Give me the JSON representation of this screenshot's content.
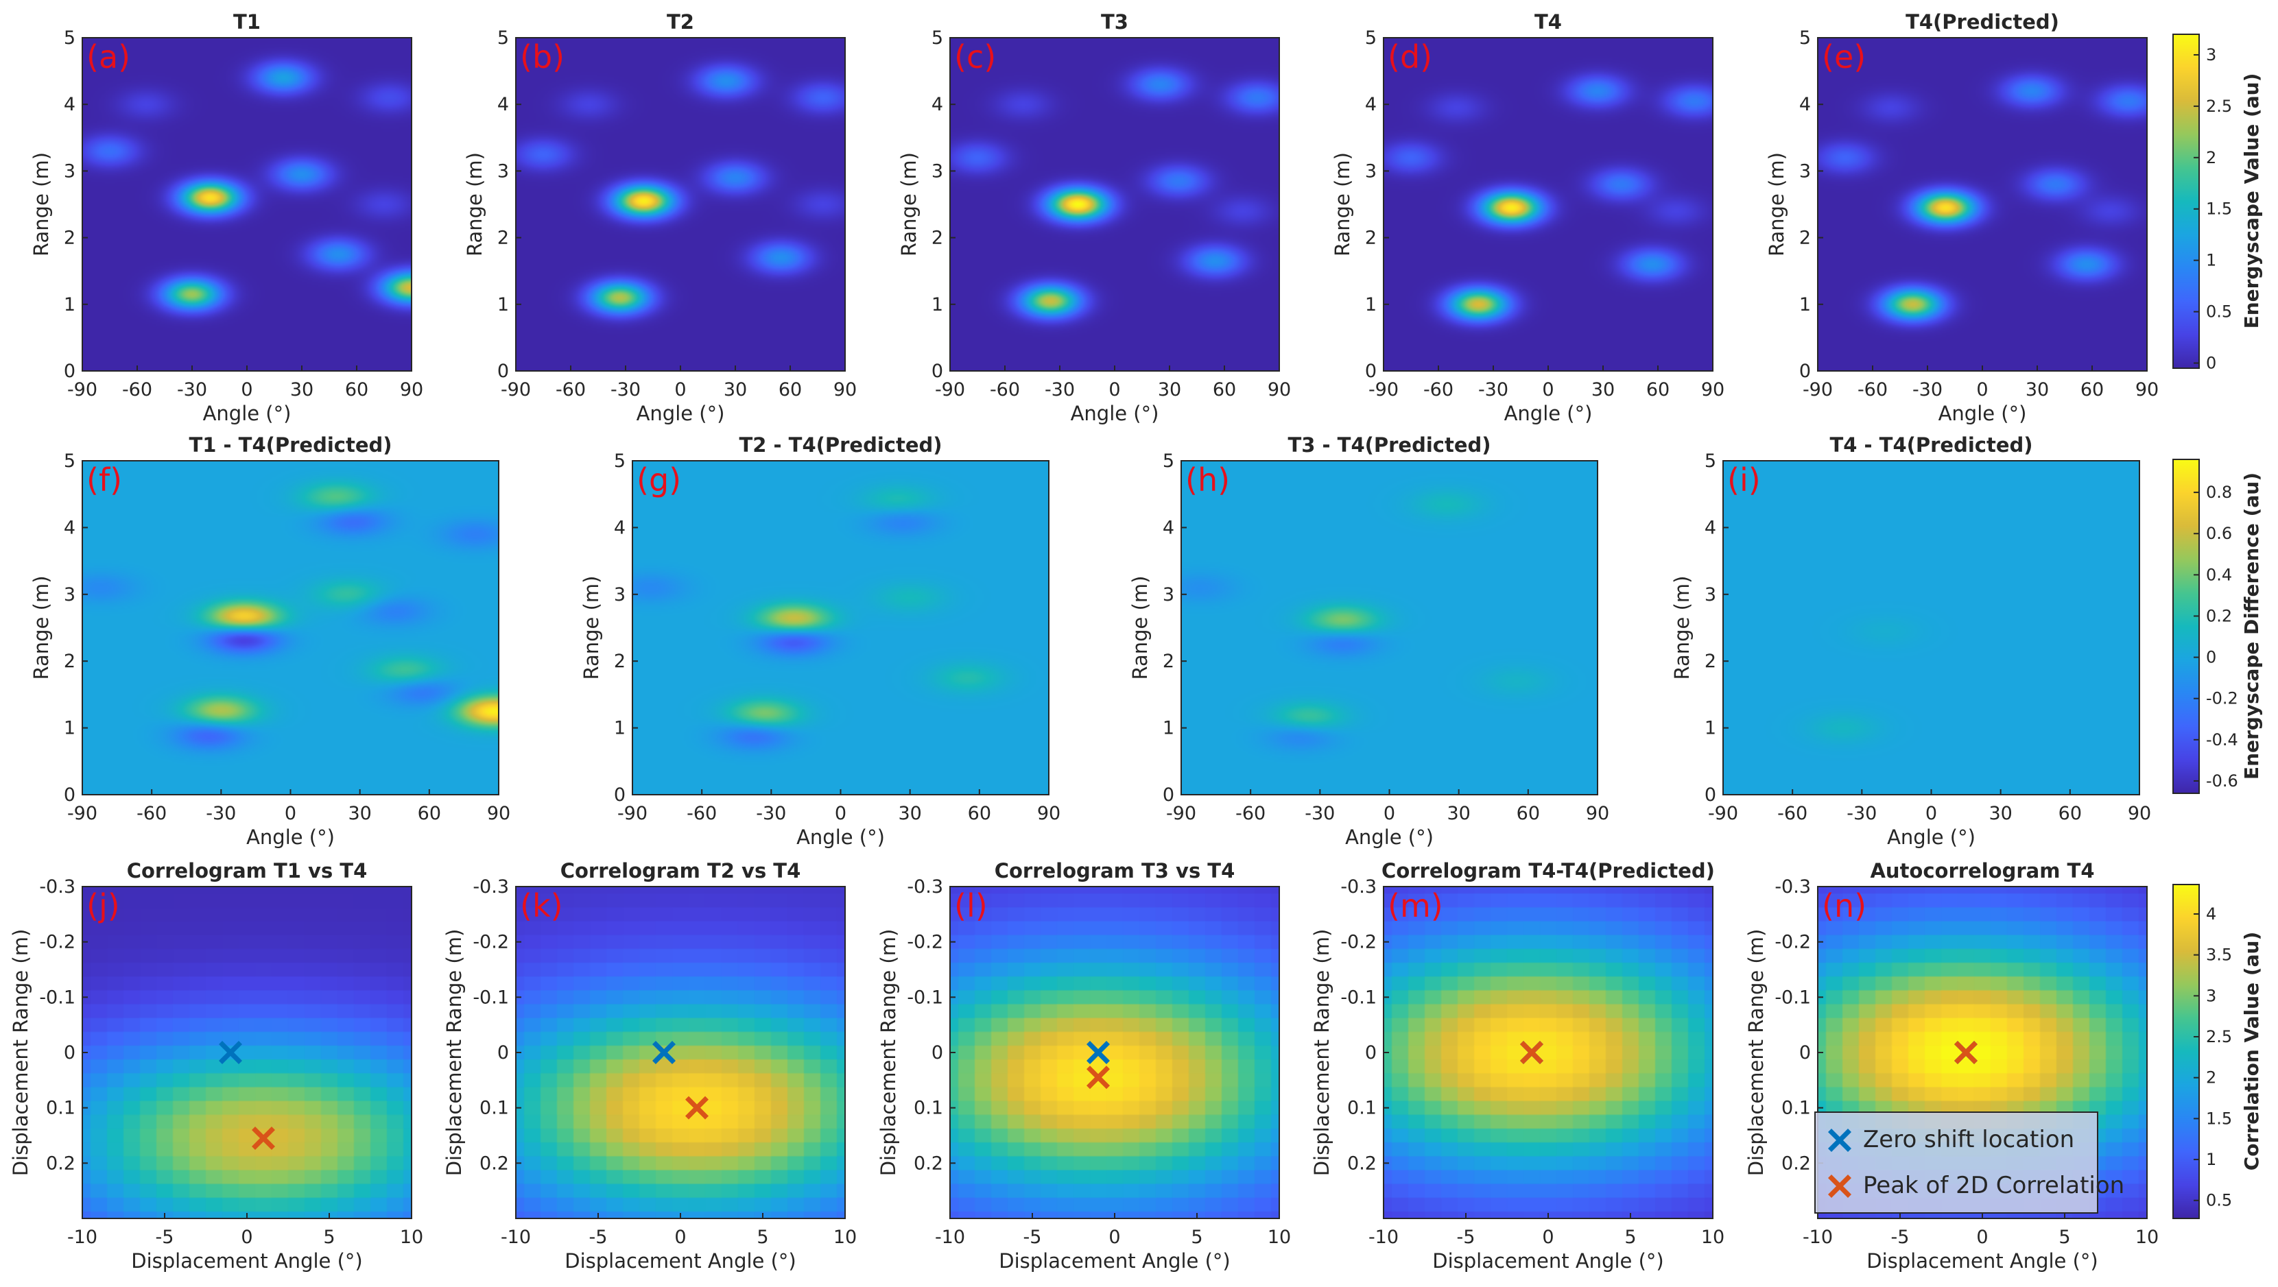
{
  "colors": {
    "panel_letter": "#e8101a",
    "zero_shift_marker": "#0072bd",
    "peak_marker": "#d95319",
    "axis": "#262626",
    "legend_bg": "#c8cde6"
  },
  "rows": {
    "row1": {
      "colorbar": {
        "label": "Energyscape Value (au)",
        "ticks": [
          "0",
          "0.5",
          "1",
          "1.5",
          "2",
          "2.5",
          "3"
        ]
      },
      "xlabel": "Angle (°)",
      "ylabel": "Range (m)",
      "xticks": [
        "-90",
        "-60",
        "-30",
        "0",
        "30",
        "60",
        "90"
      ],
      "yticks": [
        "0",
        "1",
        "2",
        "3",
        "4",
        "5"
      ]
    },
    "row2": {
      "colorbar": {
        "label": "Energyscape Difference (au)",
        "ticks": [
          "-0.6",
          "-0.4",
          "-0.2",
          "0",
          "0.2",
          "0.4",
          "0.6",
          "0.8"
        ]
      },
      "xlabel": "Angle (°)",
      "ylabel": "Range (m)",
      "xticks": [
        "-90",
        "-60",
        "-30",
        "0",
        "30",
        "60",
        "90"
      ],
      "yticks": [
        "0",
        "1",
        "2",
        "3",
        "4",
        "5"
      ]
    },
    "row3": {
      "colorbar": {
        "label": "Correlation Value (au)",
        "ticks": [
          "0.5",
          "1",
          "1.5",
          "2",
          "2.5",
          "3",
          "3.5",
          "4"
        ]
      },
      "xlabel": "Displacement Angle (°)",
      "ylabel": "Displacement Range (m)",
      "xticks": [
        "-10",
        "-5",
        "0",
        "5",
        "10"
      ],
      "yticks": [
        "-0.3",
        "-0.2",
        "-0.1",
        "0",
        "0.1",
        "0.2"
      ]
    }
  },
  "legend": {
    "zero_shift": "Zero shift location",
    "peak": "Peak of 2D Correlation"
  },
  "chart_data": [
    {
      "type": "heatmap",
      "panel": "(a)",
      "title": "T1",
      "xlabel": "Angle (°)",
      "ylabel": "Range (m)",
      "xlim": [
        -90,
        90
      ],
      "ylim": [
        0,
        5
      ],
      "clim": [
        0,
        3.1
      ],
      "peaks": [
        {
          "angle": -20,
          "range": 2.6,
          "value": 2.9
        },
        {
          "angle": -30,
          "range": 1.15,
          "value": 2.2
        },
        {
          "angle": 90,
          "range": 1.25,
          "value": 2.5
        },
        {
          "angle": 20,
          "range": 4.4,
          "value": 1.2
        },
        {
          "angle": 30,
          "range": 2.95,
          "value": 1.0
        },
        {
          "angle": 50,
          "range": 1.75,
          "value": 1.0
        },
        {
          "angle": -75,
          "range": 3.3,
          "value": 0.7
        },
        {
          "angle": 78,
          "range": 4.1,
          "value": 0.4
        },
        {
          "angle": 75,
          "range": 2.5,
          "value": 0.3
        },
        {
          "angle": -55,
          "range": 4.0,
          "value": 0.3
        }
      ]
    },
    {
      "type": "heatmap",
      "panel": "(b)",
      "title": "T2",
      "xlabel": "Angle (°)",
      "ylabel": "Range (m)",
      "xlim": [
        -90,
        90
      ],
      "ylim": [
        0,
        5
      ],
      "clim": [
        0,
        3.1
      ],
      "peaks": [
        {
          "angle": -20,
          "range": 2.55,
          "value": 3.0
        },
        {
          "angle": -33,
          "range": 1.1,
          "value": 2.3
        },
        {
          "angle": 25,
          "range": 4.35,
          "value": 1.0
        },
        {
          "angle": 30,
          "range": 2.9,
          "value": 0.9
        },
        {
          "angle": 55,
          "range": 1.7,
          "value": 1.0
        },
        {
          "angle": -75,
          "range": 3.25,
          "value": 0.6
        },
        {
          "angle": 78,
          "range": 4.1,
          "value": 0.6
        },
        {
          "angle": 78,
          "range": 2.5,
          "value": 0.3
        },
        {
          "angle": -50,
          "range": 4.0,
          "value": 0.3
        }
      ]
    },
    {
      "type": "heatmap",
      "panel": "(c)",
      "title": "T3",
      "xlabel": "Angle (°)",
      "ylabel": "Range (m)",
      "xlim": [
        -90,
        90
      ],
      "ylim": [
        0,
        5
      ],
      "clim": [
        0,
        3.1
      ],
      "peaks": [
        {
          "angle": -20,
          "range": 2.5,
          "value": 3.1
        },
        {
          "angle": -35,
          "range": 1.05,
          "value": 2.4
        },
        {
          "angle": 25,
          "range": 4.3,
          "value": 0.9
        },
        {
          "angle": 35,
          "range": 2.85,
          "value": 0.8
        },
        {
          "angle": 55,
          "range": 1.65,
          "value": 1.0
        },
        {
          "angle": -75,
          "range": 3.2,
          "value": 0.6
        },
        {
          "angle": 78,
          "range": 4.1,
          "value": 0.8
        },
        {
          "angle": 70,
          "range": 2.4,
          "value": 0.3
        },
        {
          "angle": -50,
          "range": 4.0,
          "value": 0.3
        }
      ]
    },
    {
      "type": "heatmap",
      "panel": "(d)",
      "title": "T4",
      "xlabel": "Angle (°)",
      "ylabel": "Range (m)",
      "xlim": [
        -90,
        90
      ],
      "ylim": [
        0,
        5
      ],
      "clim": [
        0,
        3.1
      ],
      "peaks": [
        {
          "angle": -20,
          "range": 2.45,
          "value": 3.0
        },
        {
          "angle": -38,
          "range": 1.0,
          "value": 2.5
        },
        {
          "angle": 27,
          "range": 4.2,
          "value": 0.9
        },
        {
          "angle": 40,
          "range": 2.8,
          "value": 0.8
        },
        {
          "angle": 57,
          "range": 1.6,
          "value": 1.0
        },
        {
          "angle": -75,
          "range": 3.2,
          "value": 0.6
        },
        {
          "angle": 80,
          "range": 4.05,
          "value": 0.8
        },
        {
          "angle": 70,
          "range": 2.4,
          "value": 0.3
        },
        {
          "angle": -50,
          "range": 3.95,
          "value": 0.3
        }
      ]
    },
    {
      "type": "heatmap",
      "panel": "(e)",
      "title": "T4(Predicted)",
      "xlabel": "Angle (°)",
      "ylabel": "Range (m)",
      "xlim": [
        -90,
        90
      ],
      "ylim": [
        0,
        5
      ],
      "clim": [
        0,
        3.1
      ],
      "peaks": [
        {
          "angle": -20,
          "range": 2.45,
          "value": 2.9
        },
        {
          "angle": -38,
          "range": 1.0,
          "value": 2.4
        },
        {
          "angle": 27,
          "range": 4.2,
          "value": 0.9
        },
        {
          "angle": 40,
          "range": 2.8,
          "value": 0.8
        },
        {
          "angle": 57,
          "range": 1.6,
          "value": 1.0
        },
        {
          "angle": -75,
          "range": 3.2,
          "value": 0.6
        },
        {
          "angle": 80,
          "range": 4.05,
          "value": 0.8
        },
        {
          "angle": 70,
          "range": 2.4,
          "value": 0.3
        },
        {
          "angle": -50,
          "range": 3.95,
          "value": 0.3
        }
      ]
    },
    {
      "type": "heatmap",
      "panel": "(f)",
      "title": "T1 - T4(Predicted)",
      "xlabel": "Angle (°)",
      "ylabel": "Range (m)",
      "xlim": [
        -90,
        90
      ],
      "ylim": [
        0,
        5
      ],
      "clim": [
        -0.65,
        0.95
      ],
      "peaks": [
        {
          "angle": -20,
          "range": 2.65,
          "value": 0.85
        },
        {
          "angle": -20,
          "range": 2.35,
          "value": -0.6
        },
        {
          "angle": -30,
          "range": 1.25,
          "value": 0.55
        },
        {
          "angle": -35,
          "range": 0.9,
          "value": -0.35
        },
        {
          "angle": 88,
          "range": 1.25,
          "value": 0.9
        },
        {
          "angle": 20,
          "range": 4.45,
          "value": 0.35
        },
        {
          "angle": 27,
          "range": 4.1,
          "value": -0.3
        },
        {
          "angle": 25,
          "range": 3.0,
          "value": 0.25
        },
        {
          "angle": 45,
          "range": 2.75,
          "value": -0.2
        },
        {
          "angle": 50,
          "range": 1.85,
          "value": 0.3
        },
        {
          "angle": 57,
          "range": 1.55,
          "value": -0.25
        },
        {
          "angle": 80,
          "range": 3.9,
          "value": -0.2
        },
        {
          "angle": -82,
          "range": 3.1,
          "value": -0.15
        }
      ]
    },
    {
      "type": "heatmap",
      "panel": "(g)",
      "title": "T2 - T4(Predicted)",
      "xlabel": "Angle (°)",
      "ylabel": "Range (m)",
      "xlim": [
        -90,
        90
      ],
      "ylim": [
        0,
        5
      ],
      "clim": [
        -0.65,
        0.95
      ],
      "peaks": [
        {
          "angle": -20,
          "range": 2.62,
          "value": 0.65
        },
        {
          "angle": -20,
          "range": 2.32,
          "value": -0.45
        },
        {
          "angle": -33,
          "range": 1.2,
          "value": 0.45
        },
        {
          "angle": -37,
          "range": 0.9,
          "value": -0.3
        },
        {
          "angle": 25,
          "range": 4.4,
          "value": 0.2
        },
        {
          "angle": 27,
          "range": 4.1,
          "value": -0.2
        },
        {
          "angle": 30,
          "range": 2.95,
          "value": 0.15
        },
        {
          "angle": 55,
          "range": 1.75,
          "value": 0.2
        },
        {
          "angle": -82,
          "range": 3.1,
          "value": -0.15
        }
      ]
    },
    {
      "type": "heatmap",
      "panel": "(h)",
      "title": "T3 - T4(Predicted)",
      "xlabel": "Angle (°)",
      "ylabel": "Range (m)",
      "xlim": [
        -90,
        90
      ],
      "ylim": [
        0,
        5
      ],
      "clim": [
        -0.65,
        0.95
      ],
      "peaks": [
        {
          "angle": -20,
          "range": 2.6,
          "value": 0.45
        },
        {
          "angle": -20,
          "range": 2.3,
          "value": -0.25
        },
        {
          "angle": -35,
          "range": 1.15,
          "value": 0.3
        },
        {
          "angle": -38,
          "range": 0.9,
          "value": -0.2
        },
        {
          "angle": 25,
          "range": 4.35,
          "value": 0.15
        },
        {
          "angle": 55,
          "range": 1.7,
          "value": 0.1
        },
        {
          "angle": -82,
          "range": 3.1,
          "value": -0.12
        }
      ]
    },
    {
      "type": "heatmap",
      "panel": "(i)",
      "title": "T4 - T4(Predicted)",
      "xlabel": "Angle (°)",
      "ylabel": "Range (m)",
      "xlim": [
        -90,
        90
      ],
      "ylim": [
        0,
        5
      ],
      "clim": [
        -0.65,
        0.95
      ],
      "peaks": [
        {
          "angle": -38,
          "range": 1.0,
          "value": 0.12
        },
        {
          "angle": -20,
          "range": 2.45,
          "value": 0.06
        }
      ]
    },
    {
      "type": "heatmap",
      "panel": "(j)",
      "title": "Correlogram T1 vs T4",
      "xlabel": "Displacement Angle (°)",
      "ylabel": "Displacement Range (m)",
      "xlim": [
        -10,
        10
      ],
      "ylim": [
        -0.3,
        0.3
      ],
      "clim": [
        0.3,
        4.3
      ],
      "peak_value": 3.5,
      "background": 0.4,
      "sigma_angle": 9,
      "sigma_range": 0.13,
      "zero_shift": {
        "angle": -1,
        "range": 0.0
      },
      "peak": {
        "angle": 1,
        "range": 0.155
      }
    },
    {
      "type": "heatmap",
      "panel": "(k)",
      "title": "Correlogram T2 vs T4",
      "xlabel": "Displacement Angle (°)",
      "ylabel": "Displacement Range (m)",
      "xlim": [
        -10,
        10
      ],
      "ylim": [
        -0.3,
        0.3
      ],
      "clim": [
        0.3,
        4.3
      ],
      "peak_value": 4.0,
      "background": 0.5,
      "sigma_angle": 9,
      "sigma_range": 0.14,
      "zero_shift": {
        "angle": -1,
        "range": 0.0
      },
      "peak": {
        "angle": 1,
        "range": 0.1
      }
    },
    {
      "type": "heatmap",
      "panel": "(l)",
      "title": "Correlogram T3 vs T4",
      "xlabel": "Displacement Angle (°)",
      "ylabel": "Displacement Range (m)",
      "xlim": [
        -10,
        10
      ],
      "ylim": [
        -0.3,
        0.3
      ],
      "clim": [
        0.3,
        4.3
      ],
      "peak_value": 4.1,
      "background": 0.5,
      "sigma_angle": 9,
      "sigma_range": 0.15,
      "zero_shift": {
        "angle": -1,
        "range": 0.0
      },
      "peak": {
        "angle": -1,
        "range": 0.045
      }
    },
    {
      "type": "heatmap",
      "panel": "(m)",
      "title": "Correlogram T4-T4(Predicted)",
      "xlabel": "Displacement Angle (°)",
      "ylabel": "Displacement Range (m)",
      "xlim": [
        -10,
        10
      ],
      "ylim": [
        -0.3,
        0.3
      ],
      "clim": [
        0.3,
        4.3
      ],
      "peak_value": 4.1,
      "background": 0.4,
      "sigma_angle": 9,
      "sigma_range": 0.15,
      "zero_shift": {
        "angle": -1,
        "range": 0.0
      },
      "peak": {
        "angle": -1,
        "range": 0.0
      }
    },
    {
      "type": "heatmap",
      "panel": "(n)",
      "title": "Autocorrelogram T4",
      "xlabel": "Displacement Angle (°)",
      "ylabel": "Displacement Range (m)",
      "xlim": [
        -10,
        10
      ],
      "ylim": [
        -0.3,
        0.3
      ],
      "clim": [
        0.3,
        4.3
      ],
      "peak_value": 4.3,
      "background": 0.4,
      "sigma_angle": 9,
      "sigma_range": 0.15,
      "zero_shift": {
        "angle": -1,
        "range": 0.0
      },
      "peak": {
        "angle": -1,
        "range": 0.0
      }
    }
  ]
}
